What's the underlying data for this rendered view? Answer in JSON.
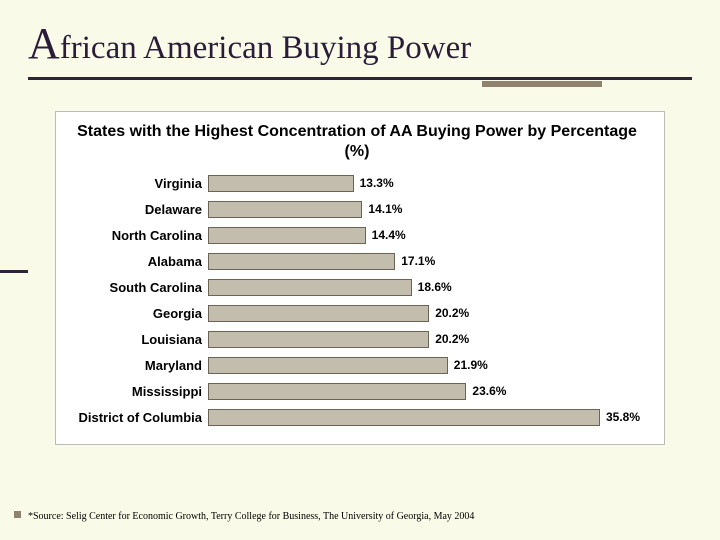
{
  "slide": {
    "title_html": "African American Buying Power",
    "title_cap": "A",
    "title_rest": "frican American Buying Power"
  },
  "chart": {
    "type": "bar-horizontal",
    "title": "States with the Highest Concentration of AA Buying Power by Percentage (%)",
    "xmax": 40,
    "bar_color": "#c3bdae",
    "bar_border": "#6b6355",
    "background": "#ffffff",
    "label_font": "Arial",
    "label_fontsize": 13,
    "value_fontsize": 12,
    "value_suffix": "%",
    "rows": [
      {
        "label": "Virginia",
        "value": 13.3
      },
      {
        "label": "Delaware",
        "value": 14.1
      },
      {
        "label": "North Carolina",
        "value": 14.4
      },
      {
        "label": "Alabama",
        "value": 17.1
      },
      {
        "label": "South Carolina",
        "value": 18.6
      },
      {
        "label": "Georgia",
        "value": 20.2
      },
      {
        "label": "Louisiana",
        "value": 20.2
      },
      {
        "label": "Maryland",
        "value": 21.9
      },
      {
        "label": "Mississippi",
        "value": 23.6
      },
      {
        "label": "District of Columbia",
        "value": 35.8
      }
    ]
  },
  "footnote": "*Source: Selig Center for Economic Growth, Terry College for Business, The University of Georgia, May 2004",
  "colors": {
    "slide_bg": "#fafae8",
    "title_color": "#2a1d3a",
    "rule_main": "#2e2438",
    "rule_accent": "#8f836f"
  }
}
